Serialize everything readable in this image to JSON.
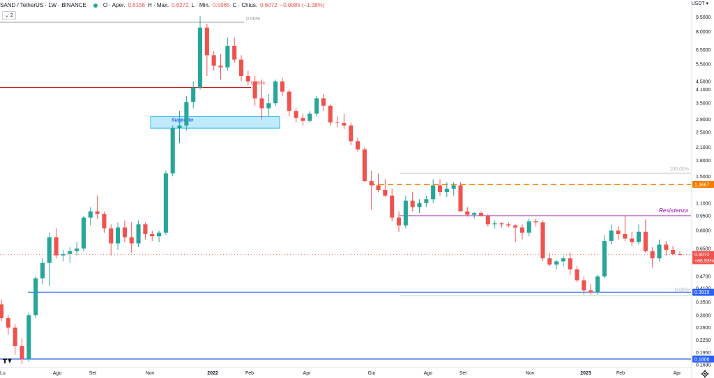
{
  "header": {
    "symbol": "SAND / TetherUS · 1W · BINANCE",
    "ohlc": [
      {
        "label": "O · Aper.",
        "value": "0.6156"
      },
      {
        "label": "H · Max.",
        "value": "0.6272"
      },
      {
        "label": "L · Min.",
        "value": "0.5965"
      },
      {
        "label": "C · Chius.",
        "value": "0.6072"
      }
    ],
    "change": "−0.0085 (−1.38%)",
    "collapse_label": "⌄ 2"
  },
  "price_axis": {
    "currency": "USDT ▾",
    "ticks": [
      "9.5000",
      "8.0000",
      "6.5000",
      "5.5000",
      "4.5000",
      "4.1000",
      "3.5000",
      "2.9000",
      "2.5000",
      "2.1000",
      "1.8000",
      "1.5000",
      "1.1000",
      "0.9500",
      "0.8000",
      "0.6500",
      "0.4700",
      "0.4100",
      "0.3500",
      "0.3000",
      "0.2600",
      "0.2250",
      "0.1950",
      "0.1690"
    ],
    "badges": [
      {
        "text": "1.3667",
        "color": "#f57c00"
      },
      {
        "text": "0.6072",
        "color": "#ef5350"
      },
      {
        "text": "+86.93%",
        "color": "#ef5350"
      },
      {
        "text": "0.3919",
        "color": "#2962ff"
      },
      {
        "text": "0.1806",
        "color": "#2962ff"
      }
    ]
  },
  "time_axis": {
    "labels": [
      "Lu",
      "Ago",
      "Set",
      "Nov",
      "2022",
      "Feb",
      "Apr",
      "Giu",
      "Ago",
      "Set",
      "Nov",
      "2023",
      "Feb",
      "Apr"
    ]
  },
  "annotations": {
    "support_label": "Supporto",
    "resistance_label": "Resistenza",
    "fib_top_label": "0.00%",
    "fib_mid_label": "0.00%",
    "fib_100_label": "100.00%",
    "fib_zero_label": "0.00%"
  },
  "colors": {
    "up": "#26a69a",
    "down": "#ef5350",
    "orange": "#f57c00",
    "blue": "#2962ff",
    "purple": "#ab47bc",
    "red_line": "#b71c1c",
    "support_fill": "#b3e5fc"
  },
  "chart_data": {
    "type": "candlestick",
    "scale": "log",
    "ylim": [
      0.165,
      10.5
    ],
    "series_ohlc": [
      [
        0.34,
        0.36,
        0.28,
        0.29
      ],
      [
        0.29,
        0.3,
        0.24,
        0.26
      ],
      [
        0.26,
        0.27,
        0.19,
        0.21
      ],
      [
        0.21,
        0.23,
        0.17,
        0.18
      ],
      [
        0.18,
        0.31,
        0.175,
        0.3
      ],
      [
        0.3,
        0.47,
        0.29,
        0.46
      ],
      [
        0.46,
        0.58,
        0.43,
        0.55
      ],
      [
        0.55,
        0.78,
        0.42,
        0.74
      ],
      [
        0.74,
        0.82,
        0.58,
        0.6
      ],
      [
        0.6,
        0.64,
        0.56,
        0.61
      ],
      [
        0.61,
        0.66,
        0.55,
        0.63
      ],
      [
        0.63,
        0.7,
        0.6,
        0.65
      ],
      [
        0.65,
        0.95,
        0.63,
        0.93
      ],
      [
        0.93,
        1.05,
        0.85,
        1.0
      ],
      [
        1.0,
        1.2,
        0.92,
        0.97
      ],
      [
        0.97,
        1.0,
        0.78,
        0.82
      ],
      [
        0.82,
        0.86,
        0.6,
        0.69
      ],
      [
        0.69,
        0.88,
        0.64,
        0.83
      ],
      [
        0.83,
        0.9,
        0.7,
        0.74
      ],
      [
        0.74,
        0.88,
        0.62,
        0.69
      ],
      [
        0.69,
        0.9,
        0.66,
        0.86
      ],
      [
        0.86,
        0.88,
        0.72,
        0.77
      ],
      [
        0.77,
        0.8,
        0.71,
        0.75
      ],
      [
        0.75,
        0.8,
        0.7,
        0.78
      ],
      [
        0.78,
        1.6,
        0.76,
        1.55
      ],
      [
        1.55,
        2.7,
        1.5,
        2.62
      ],
      [
        2.62,
        3.2,
        2.2,
        2.7
      ],
      [
        2.7,
        3.8,
        2.55,
        3.55
      ],
      [
        3.55,
        4.5,
        3.3,
        4.2
      ],
      [
        4.2,
        9.6,
        4.1,
        8.4
      ],
      [
        8.4,
        8.8,
        4.8,
        6.1
      ],
      [
        6.1,
        6.4,
        5.1,
        5.4
      ],
      [
        5.4,
        6.2,
        4.6,
        5.3
      ],
      [
        5.3,
        7.5,
        5.1,
        6.8
      ],
      [
        6.8,
        7.5,
        5.6,
        5.8
      ],
      [
        5.8,
        6.1,
        4.5,
        4.8
      ],
      [
        4.8,
        5.1,
        4.3,
        4.5
      ],
      [
        4.5,
        4.8,
        3.4,
        3.7
      ],
      [
        3.7,
        4.6,
        2.9,
        3.3
      ],
      [
        3.3,
        3.9,
        3.0,
        3.5
      ],
      [
        3.5,
        4.6,
        3.4,
        4.5
      ],
      [
        4.5,
        4.7,
        3.8,
        4.0
      ],
      [
        4.0,
        4.1,
        3.0,
        3.2
      ],
      [
        3.2,
        3.3,
        2.8,
        2.95
      ],
      [
        2.95,
        3.1,
        2.7,
        2.85
      ],
      [
        2.85,
        3.2,
        2.8,
        3.1
      ],
      [
        3.1,
        3.8,
        3.0,
        3.7
      ],
      [
        3.7,
        3.9,
        3.2,
        3.4
      ],
      [
        3.4,
        3.45,
        2.7,
        2.8
      ],
      [
        2.8,
        3.0,
        2.65,
        2.78
      ],
      [
        2.78,
        3.1,
        2.6,
        2.7
      ],
      [
        2.7,
        2.8,
        2.15,
        2.25
      ],
      [
        2.25,
        2.35,
        2.0,
        2.05
      ],
      [
        2.05,
        2.1,
        1.4,
        1.42
      ],
      [
        1.42,
        1.6,
        1.02,
        1.35
      ],
      [
        1.35,
        1.55,
        1.25,
        1.28
      ],
      [
        1.28,
        1.45,
        1.18,
        1.2
      ],
      [
        1.2,
        1.3,
        0.89,
        0.93
      ],
      [
        0.93,
        1.0,
        0.79,
        0.85
      ],
      [
        0.85,
        1.2,
        0.82,
        1.13
      ],
      [
        1.13,
        1.25,
        1.0,
        1.05
      ],
      [
        1.05,
        1.15,
        0.98,
        1.1
      ],
      [
        1.1,
        1.2,
        1.05,
        1.15
      ],
      [
        1.15,
        1.45,
        1.1,
        1.35
      ],
      [
        1.35,
        1.45,
        1.2,
        1.25
      ],
      [
        1.25,
        1.4,
        1.18,
        1.3
      ],
      [
        1.3,
        1.4,
        1.2,
        1.35
      ],
      [
        1.35,
        1.4,
        1.2,
        1.0
      ],
      [
        1.0,
        1.05,
        0.94,
        0.96
      ],
      [
        0.96,
        0.99,
        0.92,
        0.98
      ],
      [
        0.98,
        1.0,
        0.94,
        0.95
      ],
      [
        0.95,
        0.97,
        0.84,
        0.86
      ],
      [
        0.86,
        0.9,
        0.82,
        0.87
      ],
      [
        0.87,
        0.88,
        0.83,
        0.86
      ],
      [
        0.86,
        0.88,
        0.83,
        0.85
      ],
      [
        0.85,
        0.86,
        0.7,
        0.83
      ],
      [
        0.83,
        0.86,
        0.72,
        0.78
      ],
      [
        0.78,
        0.92,
        0.75,
        0.89
      ],
      [
        0.89,
        0.92,
        0.84,
        0.88
      ],
      [
        0.88,
        0.9,
        0.56,
        0.58
      ],
      [
        0.58,
        0.62,
        0.53,
        0.54
      ],
      [
        0.54,
        0.57,
        0.51,
        0.56
      ],
      [
        0.56,
        0.6,
        0.53,
        0.58
      ],
      [
        0.58,
        0.62,
        0.48,
        0.51
      ],
      [
        0.51,
        0.53,
        0.44,
        0.45
      ],
      [
        0.45,
        0.47,
        0.38,
        0.4
      ],
      [
        0.4,
        0.43,
        0.38,
        0.39
      ],
      [
        0.39,
        0.48,
        0.38,
        0.47
      ],
      [
        0.47,
        0.76,
        0.46,
        0.71
      ],
      [
        0.71,
        0.86,
        0.68,
        0.8
      ],
      [
        0.8,
        0.84,
        0.72,
        0.77
      ],
      [
        0.77,
        0.95,
        0.71,
        0.73
      ],
      [
        0.73,
        0.79,
        0.67,
        0.7
      ],
      [
        0.7,
        0.86,
        0.68,
        0.79
      ],
      [
        0.79,
        0.91,
        0.62,
        0.63
      ],
      [
        0.63,
        0.66,
        0.52,
        0.58
      ],
      [
        0.58,
        0.72,
        0.56,
        0.68
      ],
      [
        0.68,
        0.71,
        0.6,
        0.64
      ],
      [
        0.64,
        0.67,
        0.6,
        0.61
      ],
      [
        0.61,
        0.63,
        0.6,
        0.607
      ]
    ],
    "levels": {
      "orange_dashed": 1.3667,
      "purple_resistance": 0.95,
      "blue_support_top": 0.3919,
      "blue_support_bottom": 0.1806,
      "dark_red": 4.2,
      "grey_top": 9.5,
      "support_zone": [
        2.62,
        3.0
      ]
    }
  }
}
